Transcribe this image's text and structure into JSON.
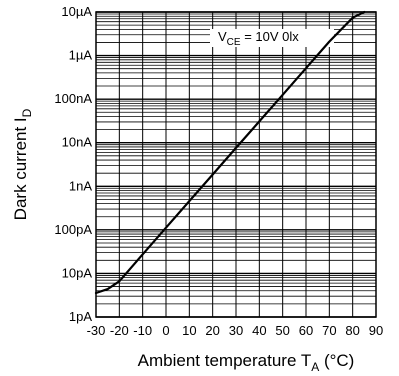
{
  "chart_data": {
    "type": "line",
    "title": "",
    "xlabel": {
      "main": "Ambient temperature T",
      "sub": "A",
      "unit": " (°C)"
    },
    "ylabel": {
      "main": "Dark current I",
      "sub": "D"
    },
    "xlim": [
      -30,
      90
    ],
    "ylim_exponent": [
      -12,
      -5
    ],
    "y_scale": "log",
    "x_ticks": [
      "-30",
      "-20",
      "-10",
      "0",
      "10",
      "20",
      "30",
      "40",
      "50",
      "60",
      "70",
      "80",
      "90"
    ],
    "x_tick_values": [
      -30,
      -20,
      -10,
      0,
      10,
      20,
      30,
      40,
      50,
      60,
      70,
      80,
      90
    ],
    "y_ticks": [
      "1pA",
      "10pA",
      "100pA",
      "1nA",
      "10nA",
      "100nA",
      "1µA",
      "10µA"
    ],
    "y_tick_exponents": [
      -12,
      -11,
      -10,
      -9,
      -8,
      -7,
      -6,
      -5
    ],
    "grid": true,
    "annotation": {
      "prefix": "V",
      "sub": "CE",
      "suffix": " = 10V 0lx"
    },
    "series": [
      {
        "x": [
          -30,
          -25,
          -20,
          -15,
          -10,
          0,
          10,
          20,
          30,
          40,
          50,
          60,
          70,
          80,
          85
        ],
        "log10_y": [
          -11.45,
          -11.36,
          -11.18,
          -10.87,
          -10.56,
          -9.95,
          -9.34,
          -8.73,
          -8.12,
          -7.51,
          -6.9,
          -6.29,
          -5.68,
          -5.13,
          -4.81
        ]
      }
    ]
  }
}
